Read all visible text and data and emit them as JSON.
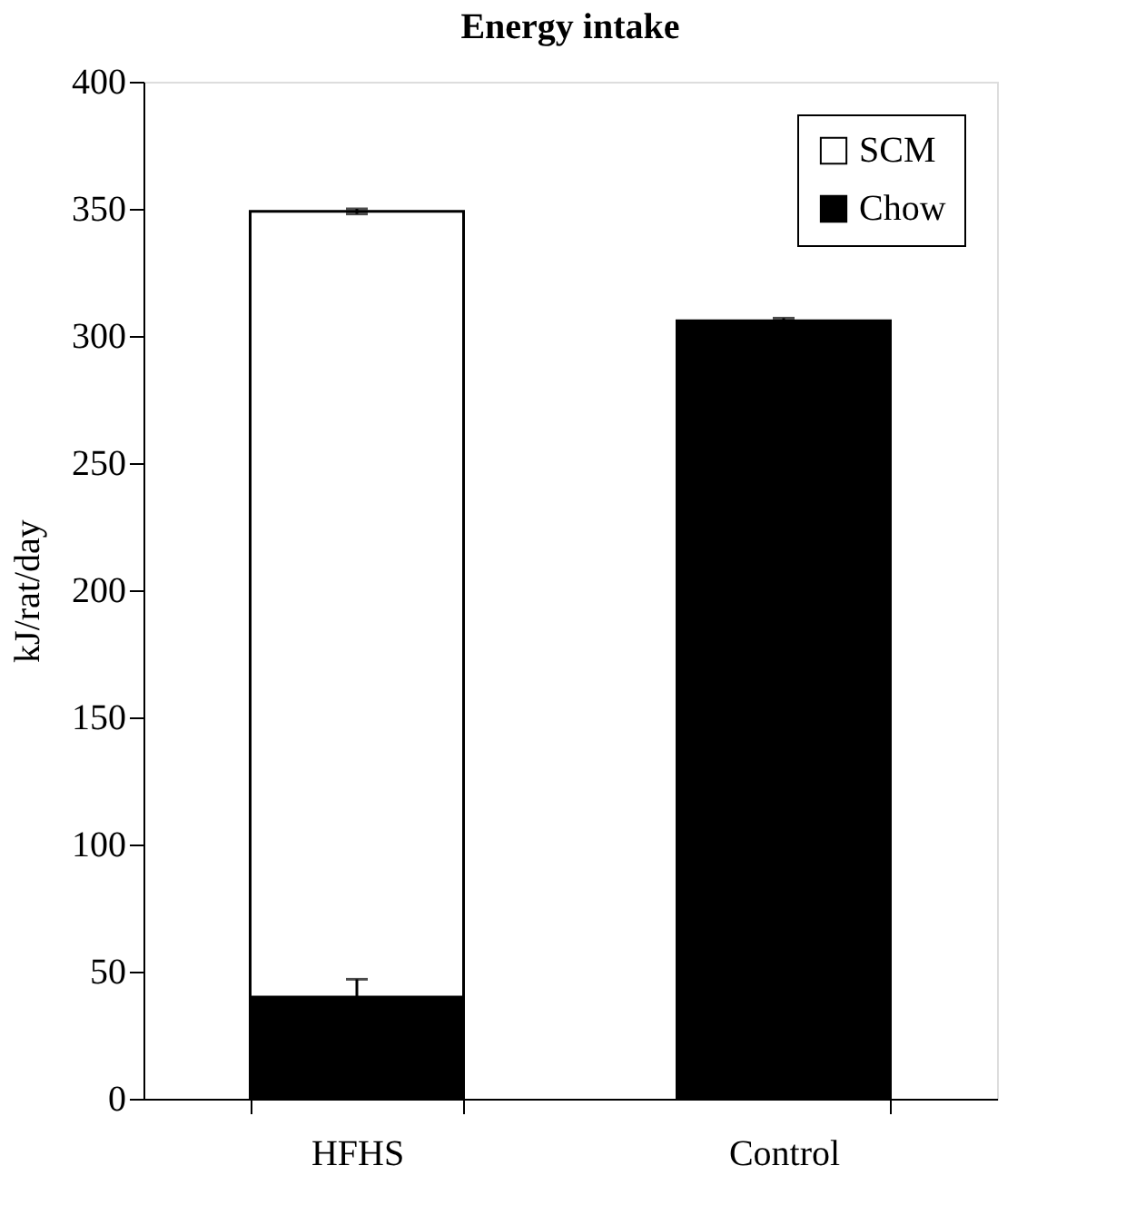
{
  "chart_data": {
    "type": "bar",
    "title": "Energy intake",
    "ylabel": "kJ/rat/day",
    "categories": [
      "HFHS",
      "Control"
    ],
    "stacked": true,
    "series": [
      {
        "name": "Chow",
        "color": "#000000",
        "values": [
          40,
          306
        ],
        "errors": [
          7,
          1
        ]
      },
      {
        "name": "SCM",
        "color": "#ffffff",
        "values": [
          309,
          null
        ],
        "errors": [
          1,
          null
        ]
      }
    ],
    "ylim": [
      0,
      400
    ],
    "yticks": [
      0,
      50,
      100,
      150,
      200,
      250,
      300,
      350,
      400
    ],
    "grid": false,
    "legend": "top right"
  }
}
